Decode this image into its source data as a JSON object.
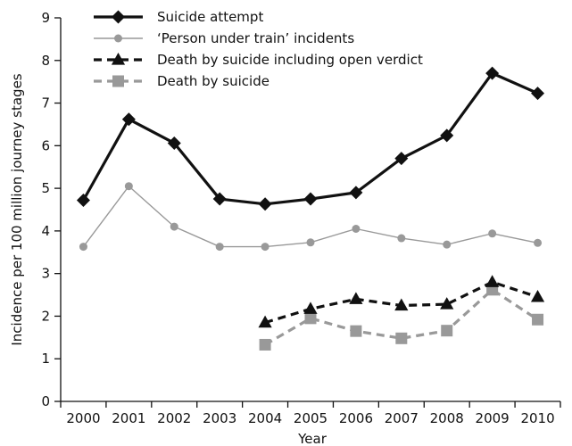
{
  "chart_data": {
    "type": "line",
    "title": "",
    "xlabel": "Year",
    "ylabel": "Incidence per 100 million journey stages",
    "x": [
      "2000",
      "2001",
      "2002",
      "2003",
      "2004",
      "2005",
      "2006",
      "2007",
      "2008",
      "2009",
      "2010"
    ],
    "ylim": [
      0,
      9
    ],
    "yticks": [
      "0",
      "1",
      "2",
      "3",
      "4",
      "5",
      "6",
      "7",
      "8",
      "9"
    ],
    "grid": false,
    "legend_position": "top-left",
    "series": [
      {
        "name": "Suicide attempt",
        "color": "#111111",
        "line_style": "solid",
        "marker": "diamond",
        "values": [
          4.72,
          6.62,
          6.06,
          4.75,
          4.63,
          4.75,
          4.9,
          5.7,
          6.24,
          7.7,
          7.23
        ]
      },
      {
        "name": "‘Person under train’ incidents",
        "color": "#999999",
        "line_style": "solid-thin",
        "marker": "circle",
        "values": [
          3.63,
          5.05,
          4.1,
          3.63,
          3.63,
          3.73,
          4.05,
          3.83,
          3.68,
          3.94,
          3.72
        ]
      },
      {
        "name": "Death by suicide including open verdict",
        "color": "#111111",
        "line_style": "dashed",
        "marker": "triangle",
        "values": [
          null,
          null,
          null,
          null,
          1.85,
          2.17,
          2.4,
          2.25,
          2.28,
          2.8,
          2.45
        ]
      },
      {
        "name": "Death by suicide",
        "color": "#999999",
        "line_style": "dashed",
        "marker": "square",
        "values": [
          null,
          null,
          null,
          null,
          1.33,
          1.95,
          1.65,
          1.48,
          1.66,
          2.62,
          1.92
        ]
      }
    ]
  }
}
